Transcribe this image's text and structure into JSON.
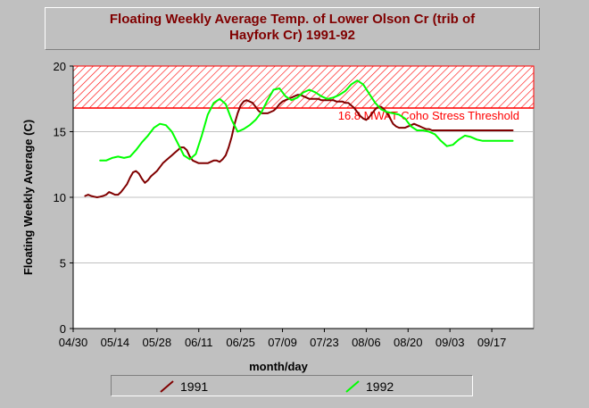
{
  "chart_data": {
    "type": "line",
    "title_lines": [
      "Floating Weekly Average Temp. of Lower Olson Cr (trib of",
      "Hayfork Cr) 1991-92"
    ],
    "xlabel": "month/day",
    "ylabel": "Floating Weekly Average (C)",
    "x_tick_labels": [
      "04/30",
      "05/14",
      "05/28",
      "06/11",
      "06/25",
      "07/09",
      "07/23",
      "08/06",
      "08/20",
      "09/03",
      "09/17"
    ],
    "x_tick_day_of_year": [
      120,
      134,
      148,
      162,
      176,
      190,
      204,
      218,
      232,
      246,
      260
    ],
    "xlim_day_of_year": [
      120,
      274
    ],
    "ylim": [
      0,
      20
    ],
    "y_ticks": [
      0,
      5,
      10,
      15,
      20
    ],
    "grid": true,
    "threshold": {
      "value": 16.8,
      "upper": 20,
      "label": "16.8 MWAT Coho Stress Threshold",
      "color": "#ff0000"
    },
    "series": [
      {
        "name": "1991",
        "color": "#800000",
        "x_day_of_year": [
          124,
          125,
          126,
          127,
          128,
          129,
          130,
          131,
          132,
          133,
          134,
          135,
          136,
          137,
          138,
          139,
          140,
          141,
          142,
          143,
          144,
          145,
          146,
          147,
          148,
          149,
          150,
          151,
          152,
          153,
          154,
          155,
          156,
          157,
          158,
          159,
          160,
          161,
          162,
          163,
          164,
          165,
          166,
          167,
          168,
          169,
          170,
          171,
          172,
          173,
          174,
          175,
          176,
          177,
          178,
          179,
          180,
          181,
          182,
          183,
          184,
          185,
          186,
          187,
          188,
          189,
          190,
          191,
          192,
          193,
          194,
          195,
          196,
          197,
          198,
          199,
          200,
          201,
          202,
          203,
          204,
          205,
          206,
          207,
          208,
          209,
          210,
          211,
          212,
          213,
          214,
          215,
          216,
          217,
          218,
          219,
          220,
          221,
          222,
          223,
          224,
          225,
          226,
          227,
          228,
          229,
          230,
          231,
          232,
          233,
          234,
          235,
          236,
          237,
          238,
          239,
          240,
          241,
          242,
          243,
          244,
          245,
          246,
          247,
          248,
          249,
          250,
          251,
          252,
          253,
          254,
          255,
          256,
          257,
          258,
          259,
          260,
          261,
          262,
          263,
          264,
          265,
          266,
          267
        ],
        "values": [
          10.1,
          10.2,
          10.1,
          10.05,
          10.0,
          10.05,
          10.1,
          10.2,
          10.4,
          10.3,
          10.2,
          10.2,
          10.4,
          10.7,
          11.0,
          11.5,
          11.9,
          12.0,
          11.8,
          11.4,
          11.1,
          11.3,
          11.6,
          11.8,
          12.0,
          12.3,
          12.6,
          12.8,
          13.0,
          13.2,
          13.4,
          13.6,
          13.8,
          13.8,
          13.6,
          13.1,
          12.8,
          12.7,
          12.6,
          12.6,
          12.6,
          12.6,
          12.7,
          12.8,
          12.8,
          12.7,
          12.9,
          13.2,
          13.8,
          14.6,
          15.6,
          16.4,
          17.0,
          17.3,
          17.4,
          17.3,
          17.2,
          16.9,
          16.6,
          16.4,
          16.4,
          16.4,
          16.5,
          16.6,
          16.8,
          17.1,
          17.3,
          17.4,
          17.5,
          17.6,
          17.7,
          17.8,
          17.8,
          17.7,
          17.6,
          17.5,
          17.5,
          17.5,
          17.5,
          17.4,
          17.4,
          17.4,
          17.4,
          17.4,
          17.3,
          17.3,
          17.3,
          17.2,
          17.2,
          17.0,
          16.8,
          16.5,
          16.2,
          16.0,
          15.9,
          16.1,
          16.4,
          16.7,
          16.9,
          16.9,
          16.7,
          16.4,
          16.0,
          15.6,
          15.4,
          15.3,
          15.3,
          15.3,
          15.4,
          15.5,
          15.6,
          15.5,
          15.4,
          15.3,
          15.2,
          15.2,
          15.1,
          15.1,
          15.1,
          15.1,
          15.1,
          15.1,
          15.1,
          15.1,
          15.1,
          15.1,
          15.1,
          15.1,
          15.1,
          15.1,
          15.1,
          15.1,
          15.1,
          15.1,
          15.1,
          15.1,
          15.1,
          15.1,
          15.1,
          15.1,
          15.1,
          15.1,
          15.1,
          15.1
        ]
      },
      {
        "name": "1992",
        "color": "#00ff00",
        "x_day_of_year": [
          129,
          131,
          133,
          135,
          137,
          139,
          141,
          143,
          145,
          147,
          149,
          151,
          153,
          155,
          157,
          159,
          161,
          163,
          165,
          167,
          169,
          171,
          173,
          175,
          177,
          179,
          181,
          183,
          185,
          187,
          189,
          191,
          193,
          195,
          197,
          199,
          201,
          203,
          205,
          207,
          209,
          211,
          213,
          215,
          217,
          219,
          221,
          223,
          225,
          227,
          229,
          231,
          233,
          235,
          237,
          239,
          241,
          243,
          245,
          247,
          249,
          251,
          253,
          255,
          257,
          259,
          261,
          263,
          265,
          267
        ],
        "values": [
          12.8,
          12.8,
          13.0,
          13.1,
          13.0,
          13.1,
          13.6,
          14.2,
          14.7,
          15.3,
          15.6,
          15.5,
          15.0,
          14.1,
          13.2,
          12.9,
          13.3,
          14.7,
          16.3,
          17.2,
          17.5,
          17.1,
          15.9,
          15.0,
          15.2,
          15.5,
          15.9,
          16.5,
          17.4,
          18.2,
          18.3,
          17.7,
          17.4,
          17.6,
          18.0,
          18.2,
          18.0,
          17.7,
          17.5,
          17.6,
          17.8,
          18.1,
          18.6,
          18.9,
          18.6,
          17.9,
          17.2,
          16.7,
          16.5,
          16.4,
          16.3,
          16.0,
          15.4,
          15.1,
          15.1,
          15.0,
          14.8,
          14.3,
          13.9,
          14.0,
          14.4,
          14.7,
          14.6,
          14.4,
          14.3,
          14.3,
          14.3,
          14.3,
          14.3,
          14.3
        ]
      }
    ],
    "legend": {
      "placement": "bottom",
      "entries": [
        "1991",
        "1992"
      ]
    }
  }
}
